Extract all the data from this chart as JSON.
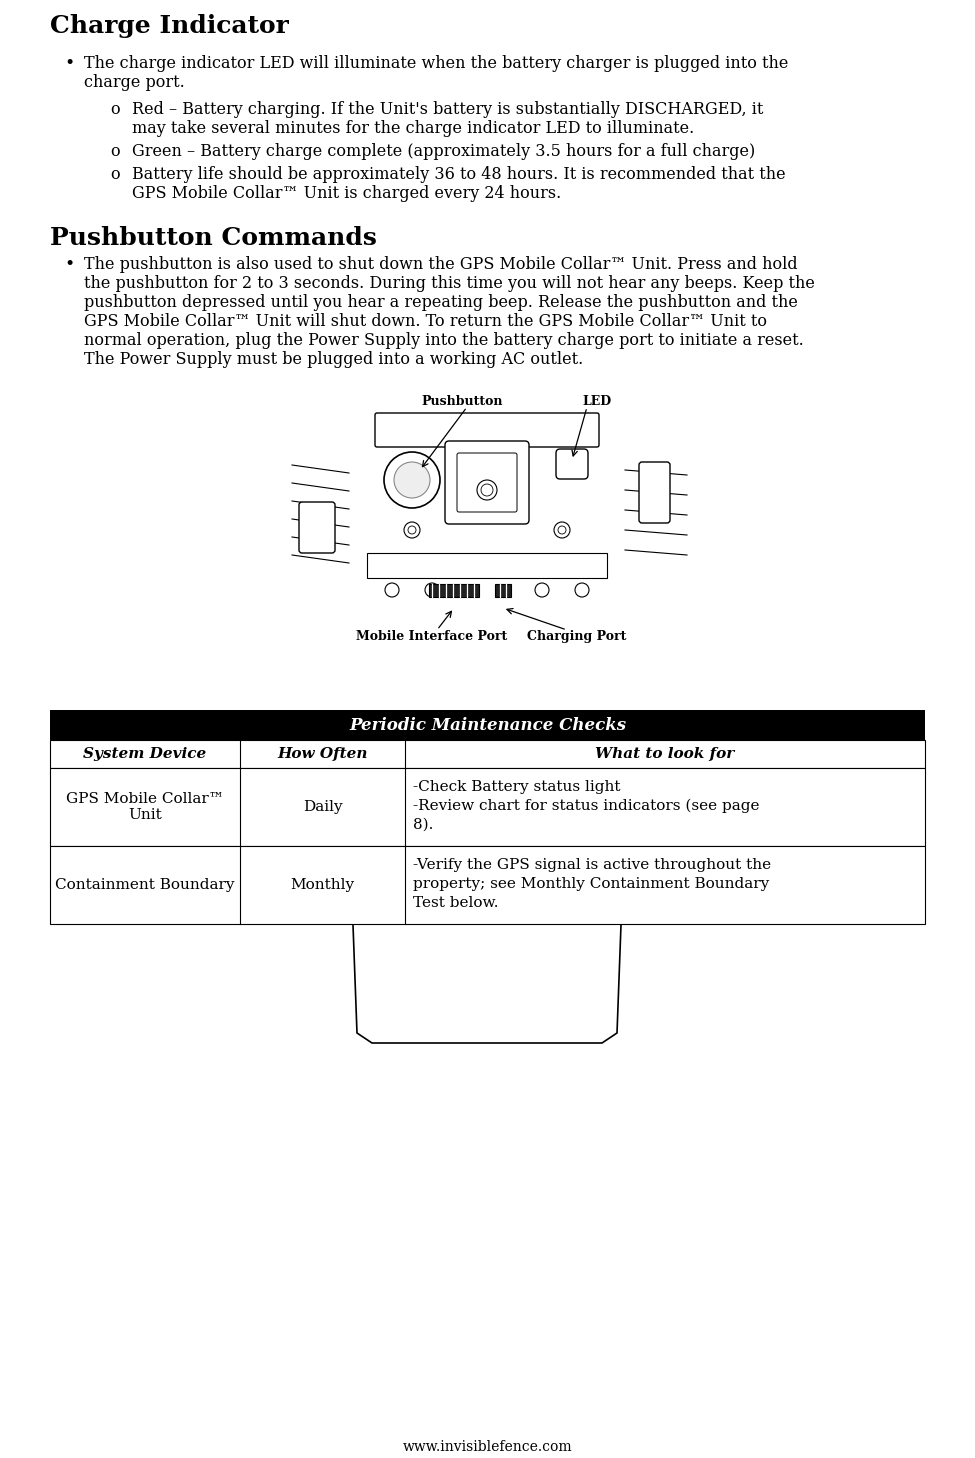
{
  "title": "Charge Indicator",
  "section2_title": "Pushbutton Commands",
  "section3_title": "Periodic Maintenance Checks",
  "bullet1_line1": "The charge indicator LED will illuminate when the battery charger is plugged into the",
  "bullet1_line2": "charge port.",
  "sub1_line1": "Red – Battery charging. If the Unit's battery is substantially DISCHARGED, it",
  "sub1_line2": "may take several minutes for the charge indicator LED to illuminate.",
  "sub2_line1": "Green – Battery charge complete (approximately 3.5 hours for a full charge)",
  "sub3_line1": "Battery life should be approximately 36 to 48 hours. It is recommended that the",
  "sub3_line2": "GPS Mobile Collar™ Unit is charged every 24 hours.",
  "pb_line1": "The pushbutton is also used to shut down the GPS Mobile Collar™ Unit. Press and hold",
  "pb_line2": "the pushbutton for 2 to 3 seconds. During this time you will not hear any beeps. Keep the",
  "pb_line3": "pushbutton depressed until you hear a repeating beep. Release the pushbutton and the",
  "pb_line4": "GPS Mobile Collar™ Unit will shut down. To return the GPS Mobile Collar™ Unit to",
  "pb_line5": "normal operation, plug the Power Supply into the battery charge port to initiate a reset.",
  "pb_line6": "The Power Supply must be plugged into a working AC outlet.",
  "img_label_pb": "Pushbutton",
  "img_label_led": "LED",
  "img_label_mip": "Mobile Interface Port",
  "img_label_cp": "Charging Port",
  "table_header_bg": "#000000",
  "table_header_text": "#ffffff",
  "table_col1_header": "System Device",
  "table_col2_header": "How Often",
  "table_col3_header": "What to look for",
  "table_row1_col1": "GPS Mobile Collar™\nUnit",
  "table_row1_col2": "Daily",
  "table_row1_col3_l1": "-Check Battery status light",
  "table_row1_col3_l2": "-Review chart for status indicators (see page",
  "table_row1_col3_l3": "8).",
  "table_row2_col1": "Containment Boundary",
  "table_row2_col2": "Monthly",
  "table_row2_col3_l1": "-Verify the GPS signal is active throughout the",
  "table_row2_col3_l2": "property; see Monthly Containment Boundary",
  "table_row2_col3_l3": "Test below.",
  "footer": "www.invisiblefence.com",
  "bg_color": "#ffffff",
  "text_color": "#000000",
  "page_width": 9.75,
  "page_height": 14.58,
  "dpi": 100
}
